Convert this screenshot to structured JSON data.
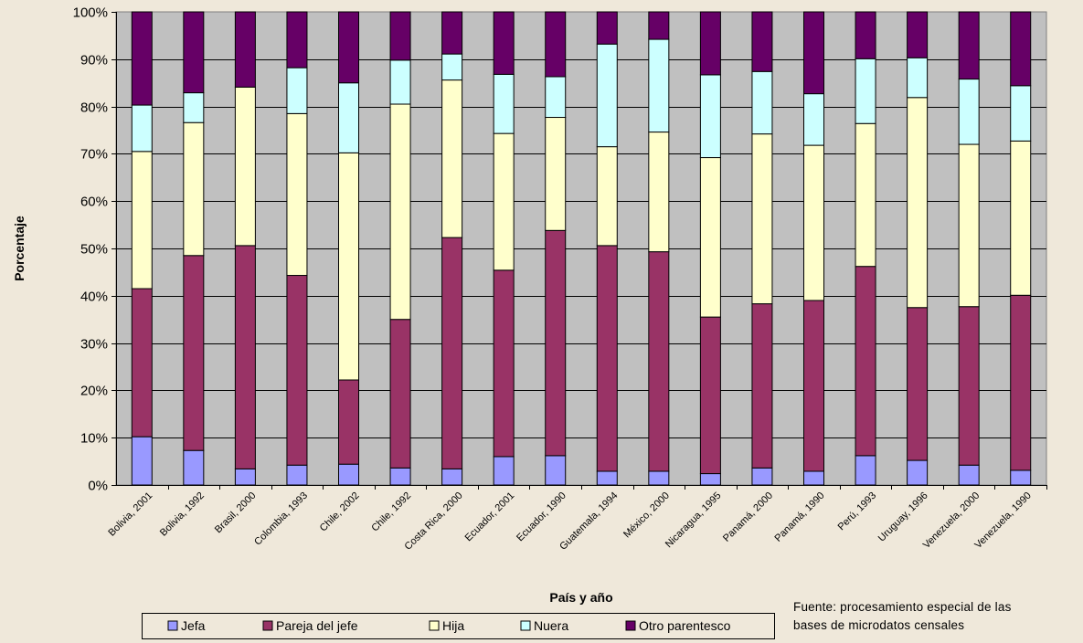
{
  "chart_data": {
    "type": "bar",
    "stacked": true,
    "xlabel": "País y año",
    "ylabel": "Porcentaje",
    "ylim": [
      0,
      100
    ],
    "yticks": [
      "0%",
      "10%",
      "20%",
      "30%",
      "40%",
      "50%",
      "60%",
      "70%",
      "80%",
      "90%",
      "100%"
    ],
    "grid": true,
    "legend_position": "bottom",
    "categories": [
      "Bolivia, 2001",
      "Bolivia, 1992",
      "Brasil, 2000",
      "Colombia, 1993",
      "Chile, 2002",
      "Chile, 1992",
      "Costa Rica, 2000",
      "Ecuador, 2001",
      "Ecuador, 1990",
      "Guatemala, 1994",
      "México, 2000",
      "Nicaragua, 1995",
      "Panamá, 2000",
      "Panamá, 1990",
      "Perú, 1993",
      "Uruguay, 1996",
      "Venezuela, 2000",
      "Venezuela, 1990"
    ],
    "series": [
      {
        "name": "Jefa",
        "color": "#9999ff",
        "values": [
          10.2,
          7.3,
          3.4,
          4.2,
          4.4,
          3.6,
          3.4,
          6.0,
          6.2,
          2.9,
          2.9,
          2.4,
          3.6,
          2.9,
          6.2,
          5.2,
          4.2,
          3.1
        ]
      },
      {
        "name": "Pareja del jefe",
        "color": "#993366",
        "values": [
          31.3,
          41.2,
          47.2,
          40.1,
          17.8,
          31.4,
          48.9,
          39.4,
          47.6,
          47.7,
          46.4,
          33.1,
          34.7,
          36.1,
          40.0,
          32.3,
          33.5,
          37.0
        ]
      },
      {
        "name": "Hija",
        "color": "#ffffcc",
        "values": [
          29.0,
          28.1,
          33.5,
          34.2,
          48.0,
          45.5,
          33.3,
          28.9,
          23.9,
          20.9,
          25.3,
          33.7,
          35.9,
          32.8,
          30.2,
          44.4,
          34.3,
          32.6
        ]
      },
      {
        "name": "Nuera",
        "color": "#ccffff",
        "values": [
          9.8,
          6.3,
          0.0,
          9.7,
          14.8,
          9.3,
          5.5,
          12.5,
          8.6,
          21.7,
          19.6,
          17.5,
          13.2,
          10.9,
          13.7,
          8.4,
          13.8,
          11.7
        ]
      },
      {
        "name": "Otro parentesco",
        "color": "#660066",
        "values": [
          19.7,
          17.1,
          15.9,
          11.8,
          15.0,
          10.2,
          8.9,
          13.2,
          13.7,
          6.8,
          5.8,
          13.3,
          12.6,
          17.3,
          9.9,
          9.7,
          14.2,
          15.6
        ]
      }
    ]
  },
  "source_note": {
    "line1": "Fuente: procesamiento especial de las",
    "line2": "bases de microdatos censales"
  }
}
